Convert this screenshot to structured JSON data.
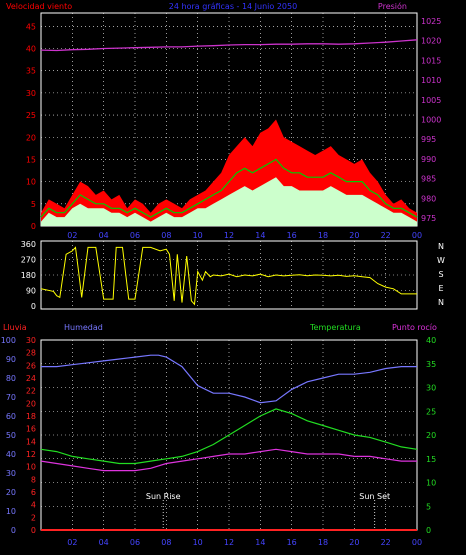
{
  "header": {
    "left_label": "Velocidad viento",
    "center_label": "24 hora gráficas - 14 Junio 2050",
    "right_label": "Presión"
  },
  "colors": {
    "background": "#000000",
    "frame": "#ffffff",
    "grid": "#ffffff",
    "wind_gust": "#ff0000",
    "wind_avg": "#00cc00",
    "wind_speed": "#ccffcc",
    "pressure": "#cc33cc",
    "direction": "#ffff00",
    "rain": "#ff2222",
    "humidity": "#7777ff",
    "temperature": "#22dd22",
    "dewpoint": "#dd33dd",
    "sun_marker": "#ffffff"
  },
  "chart_data": [
    {
      "type": "line",
      "name": "wind-pressure",
      "x_tick_labels": [
        "02",
        "04",
        "06",
        "08",
        "10",
        "12",
        "14",
        "16",
        "18",
        "20",
        "22",
        "00"
      ],
      "y_left_label": "Velocidad viento",
      "y_left_ticks": [
        0,
        5,
        10,
        15,
        20,
        25,
        30,
        35,
        40,
        45
      ],
      "y_left_range": [
        0,
        48
      ],
      "y_right_label": "Presión",
      "y_right_ticks": [
        975,
        980,
        985,
        990,
        995,
        1000,
        1005,
        1010,
        1015,
        1020,
        1025
      ],
      "y_right_range": [
        973,
        1027
      ],
      "series": [
        {
          "key": "gust",
          "x": [
            0,
            0.5,
            1,
            1.5,
            2,
            2.5,
            3,
            3.5,
            4,
            4.5,
            5,
            5.5,
            6,
            6.5,
            7,
            7.5,
            8,
            8.5,
            9,
            9.5,
            10,
            10.5,
            11,
            11.5,
            12,
            12.5,
            13,
            13.5,
            14,
            14.5,
            15,
            15.5,
            16,
            16.5,
            17,
            17.5,
            18,
            18.5,
            19,
            19.5,
            20,
            20.5,
            21,
            21.5,
            22,
            22.5,
            23,
            23.5,
            24
          ],
          "y": [
            3,
            6,
            5,
            4,
            7,
            10,
            9,
            7,
            8,
            6,
            7,
            4,
            6,
            5,
            3,
            5,
            6,
            5,
            4,
            6,
            7,
            8,
            10,
            12,
            16,
            18,
            20,
            18,
            21,
            22,
            24,
            20,
            19,
            18,
            17,
            16,
            17,
            18,
            16,
            15,
            14,
            15,
            12,
            10,
            7,
            5,
            6,
            4,
            3
          ]
        },
        {
          "key": "avg",
          "x": [
            0,
            0.5,
            1,
            1.5,
            2,
            2.5,
            3,
            3.5,
            4,
            4.5,
            5,
            5.5,
            6,
            6.5,
            7,
            7.5,
            8,
            8.5,
            9,
            9.5,
            10,
            10.5,
            11,
            11.5,
            12,
            12.5,
            13,
            13.5,
            14,
            14.5,
            15,
            15.5,
            16,
            16.5,
            17,
            17.5,
            18,
            18.5,
            19,
            19.5,
            20,
            20.5,
            21,
            21.5,
            22,
            22.5,
            23,
            23.5,
            24
          ],
          "y": [
            2,
            4,
            3,
            3,
            5,
            7,
            6,
            5,
            5,
            4,
            4,
            3,
            4,
            3,
            2,
            3,
            4,
            3,
            3,
            4,
            5,
            6,
            7,
            8,
            10,
            12,
            13,
            12,
            13,
            14,
            15,
            13,
            12,
            12,
            11,
            11,
            11,
            12,
            11,
            10,
            10,
            10,
            8,
            7,
            5,
            4,
            4,
            3,
            2
          ]
        },
        {
          "key": "speed",
          "x": [
            0,
            0.5,
            1,
            1.5,
            2,
            2.5,
            3,
            3.5,
            4,
            4.5,
            5,
            5.5,
            6,
            6.5,
            7,
            7.5,
            8,
            8.5,
            9,
            9.5,
            10,
            10.5,
            11,
            11.5,
            12,
            12.5,
            13,
            13.5,
            14,
            14.5,
            15,
            15.5,
            16,
            16.5,
            17,
            17.5,
            18,
            18.5,
            19,
            19.5,
            20,
            20.5,
            21,
            21.5,
            22,
            22.5,
            23,
            23.5,
            24
          ],
          "y": [
            1,
            3,
            2,
            2,
            4,
            5,
            4,
            4,
            4,
            3,
            3,
            2,
            3,
            2,
            1,
            2,
            3,
            2,
            2,
            3,
            4,
            4,
            5,
            6,
            7,
            8,
            9,
            8,
            9,
            10,
            11,
            9,
            9,
            8,
            8,
            8,
            8,
            9,
            8,
            7,
            7,
            7,
            6,
            5,
            4,
            3,
            3,
            2,
            1
          ]
        },
        {
          "key": "pressure",
          "x": [
            0,
            1,
            2,
            3,
            4,
            5,
            6,
            7,
            8,
            9,
            10,
            11,
            12,
            13,
            14,
            15,
            16,
            17,
            18,
            19,
            20,
            21,
            22,
            23,
            24
          ],
          "y": [
            1017.6,
            1017.5,
            1017.7,
            1017.8,
            1018.0,
            1018.1,
            1018.2,
            1018.3,
            1018.4,
            1018.4,
            1018.6,
            1018.7,
            1018.9,
            1019.0,
            1019.0,
            1019.1,
            1019.1,
            1019.2,
            1019.2,
            1019.1,
            1019.2,
            1019.4,
            1019.6,
            1019.9,
            1020.2
          ]
        }
      ]
    },
    {
      "type": "line",
      "name": "wind-direction",
      "y_ticks": [
        0,
        90,
        180,
        270,
        360
      ],
      "y_range": [
        0,
        360
      ],
      "side_letters": [
        "N",
        "W",
        "S",
        "E",
        "N"
      ],
      "series": [
        {
          "key": "direction",
          "x": [
            0,
            0.8,
            1,
            1.2,
            1.6,
            2,
            2.2,
            2.4,
            2.6,
            3,
            3.5,
            4,
            4.6,
            4.8,
            5.2,
            5.6,
            6,
            6.5,
            7,
            7.6,
            8,
            8.2,
            8.5,
            8.7,
            9,
            9.3,
            9.6,
            9.8,
            10,
            10.3,
            10.5,
            10.8,
            11,
            11.5,
            12,
            12.5,
            13,
            13.5,
            14,
            14.5,
            15,
            15.5,
            16,
            16.5,
            17,
            17.5,
            18,
            18.5,
            19,
            19.5,
            20,
            20.5,
            21,
            21.5,
            22,
            22.5,
            23,
            23.5,
            24
          ],
          "y": [
            100,
            85,
            60,
            50,
            300,
            320,
            340,
            200,
            50,
            340,
            340,
            40,
            40,
            340,
            340,
            40,
            40,
            340,
            340,
            320,
            330,
            300,
            30,
            300,
            20,
            290,
            30,
            10,
            200,
            150,
            200,
            170,
            180,
            175,
            185,
            170,
            180,
            175,
            185,
            170,
            180,
            175,
            178,
            182,
            176,
            180,
            178,
            175,
            178,
            172,
            176,
            170,
            165,
            130,
            110,
            100,
            70,
            70,
            70
          ]
        }
      ]
    },
    {
      "type": "line",
      "name": "humidity-temperature",
      "x_tick_labels": [
        "02",
        "04",
        "06",
        "08",
        "10",
        "12",
        "14",
        "16",
        "18",
        "20",
        "22",
        "00"
      ],
      "y_rain_label": "Lluvia",
      "y_rain_ticks": [
        0,
        2,
        4,
        6,
        8,
        10,
        12,
        14,
        16,
        18,
        20,
        22,
        24,
        26,
        28,
        30
      ],
      "y_rain_range": [
        0,
        30
      ],
      "y_humidity_label": "Humedad",
      "y_humidity_ticks": [
        0,
        10,
        20,
        30,
        40,
        50,
        60,
        70,
        80,
        90,
        100
      ],
      "y_humidity_range": [
        0,
        100
      ],
      "y_temp_label": "Temperatura",
      "y_temp_ticks": [
        0,
        5,
        10,
        15,
        20,
        25,
        30,
        35,
        40
      ],
      "y_temp_range": [
        0,
        40
      ],
      "dewpoint_label": "Punto rocío",
      "annotations": [
        {
          "label": "Sun Rise",
          "x_hour": 7.8
        },
        {
          "label": "Sun Set",
          "x_hour": 21.3
        }
      ],
      "series": [
        {
          "key": "humidity",
          "x": [
            0,
            1,
            2,
            3,
            4,
            5,
            6,
            7,
            7.5,
            8,
            9,
            10,
            11,
            12,
            13,
            14,
            15,
            16,
            17,
            18,
            19,
            20,
            21,
            22,
            23,
            24
          ],
          "y": [
            86,
            86,
            87,
            88,
            89,
            90,
            91,
            92,
            92,
            91,
            86,
            76,
            72,
            72,
            70,
            67,
            68,
            74,
            78,
            80,
            82,
            82,
            83,
            85,
            86,
            86
          ]
        },
        {
          "key": "temperature",
          "x": [
            0,
            1,
            2,
            3,
            4,
            5,
            6,
            7,
            8,
            9,
            10,
            11,
            12,
            13,
            14,
            15,
            16,
            17,
            18,
            19,
            20,
            21,
            22,
            23,
            24
          ],
          "y": [
            17,
            16.5,
            15.5,
            15,
            14.5,
            14,
            14,
            14.5,
            15,
            15.5,
            16.5,
            18,
            20,
            22,
            24,
            25.5,
            24.5,
            23,
            22,
            21,
            20,
            19.5,
            18.5,
            17.5,
            17
          ]
        },
        {
          "key": "dewpoint",
          "x": [
            0,
            1,
            2,
            3,
            4,
            5,
            6,
            7,
            8,
            9,
            10,
            11,
            12,
            13,
            14,
            15,
            16,
            17,
            18,
            19,
            20,
            21,
            22,
            23,
            24
          ],
          "y": [
            14.5,
            14,
            13.5,
            13,
            12.5,
            12.5,
            12.5,
            13,
            14,
            14.5,
            15,
            15.5,
            16,
            16,
            16.5,
            17,
            16.5,
            16,
            16,
            16,
            15.5,
            15.5,
            15,
            14.5,
            14.5
          ]
        },
        {
          "key": "rain",
          "x": [
            0,
            24
          ],
          "y": [
            0,
            0
          ]
        }
      ]
    }
  ],
  "panel3_header": {
    "rain_label": "Lluvia",
    "humidity_label": "Humedad",
    "temp_label": "Temperatura",
    "dewpoint_label": "Punto rocío"
  }
}
